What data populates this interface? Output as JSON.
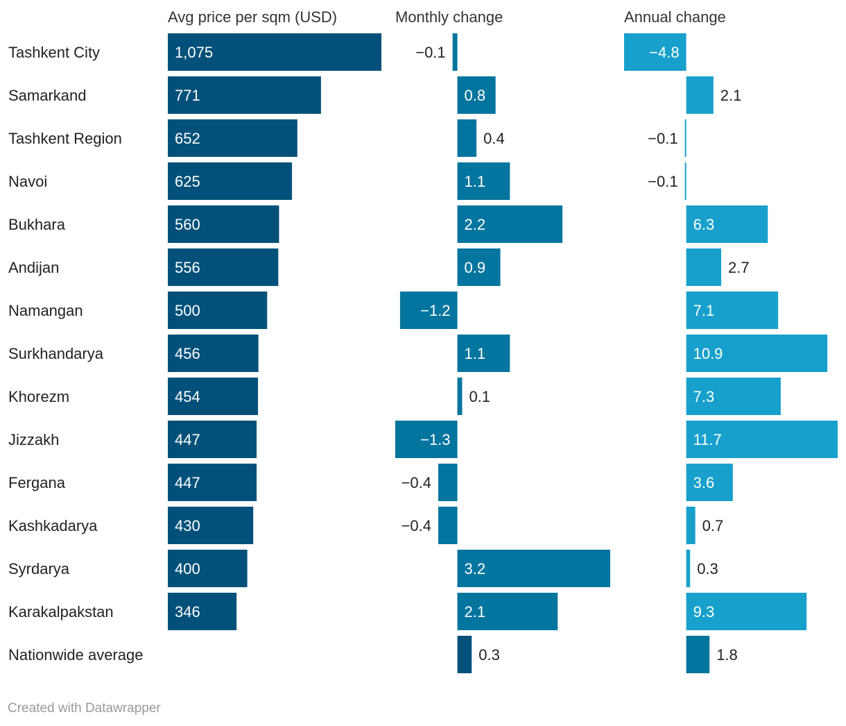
{
  "chart_data": {
    "type": "bar",
    "title": "",
    "categories": [
      "Tashkent City",
      "Samarkand",
      "Tashkent Region",
      "Navoi",
      "Bukhara",
      "Andijan",
      "Namangan",
      "Surkhandarya",
      "Khorezm",
      "Jizzakh",
      "Fergana",
      "Kashkadarya",
      "Syrdarya",
      "Karakalpakstan",
      "Nationwide average"
    ],
    "series": [
      {
        "name": "Avg price per sqm (USD)",
        "values": [
          1075,
          771,
          652,
          625,
          560,
          556,
          500,
          456,
          454,
          447,
          447,
          430,
          400,
          346,
          null
        ],
        "labels": [
          "1,075",
          "771",
          "652",
          "625",
          "560",
          "556",
          "500",
          "456",
          "454",
          "447",
          "447",
          "430",
          "400",
          "346",
          ""
        ],
        "color": "#03517a",
        "xlim": [
          0,
          1075
        ]
      },
      {
        "name": "Monthly change",
        "values": [
          -0.1,
          0.8,
          0.4,
          1.1,
          2.2,
          0.9,
          -1.2,
          1.1,
          0.1,
          -1.3,
          -0.4,
          -0.4,
          3.2,
          2.1,
          0.3
        ],
        "labels": [
          "−0.1",
          "0.8",
          "0.4",
          "1.1",
          "2.2",
          "0.9",
          "−1.2",
          "1.1",
          "0.1",
          "−1.3",
          "−0.4",
          "−0.4",
          "3.2",
          "2.1",
          "0.3"
        ],
        "color": "#04759e",
        "xlim": [
          -1.3,
          3.2
        ]
      },
      {
        "name": "Annual change",
        "values": [
          -4.8,
          2.1,
          -0.1,
          -0.1,
          6.3,
          2.7,
          7.1,
          10.9,
          7.3,
          11.7,
          3.6,
          0.7,
          0.3,
          9.3,
          1.8
        ],
        "labels": [
          "−4.8",
          "2.1",
          "−0.1",
          "−0.1",
          "6.3",
          "2.7",
          "7.1",
          "10.9",
          "7.3",
          "11.7",
          "3.6",
          "0.7",
          "0.3",
          "9.3",
          "1.8"
        ],
        "color": "#18a0cc",
        "xlim": [
          -4.8,
          11.7
        ]
      }
    ],
    "highlight_color": "#03517a",
    "highlight_category": "Nationwide average",
    "highlight_colors_by_series": [
      "#03517a",
      "#03517a",
      "#04759e"
    ]
  },
  "footer": "Created with Datawrapper"
}
